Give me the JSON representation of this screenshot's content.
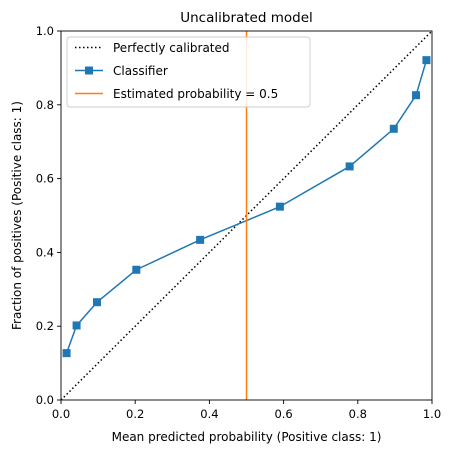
{
  "chart_data": {
    "type": "line",
    "title": "Uncalibrated model",
    "xlabel": "Mean predicted probability (Positive class: 1)",
    "ylabel": "Fraction of positives (Positive class: 1)",
    "xlim": [
      0,
      1
    ],
    "ylim": [
      0,
      1
    ],
    "x_ticks": [
      "0.0",
      "0.2",
      "0.4",
      "0.6",
      "0.8",
      "1.0"
    ],
    "y_ticks": [
      "0.0",
      "0.2",
      "0.4",
      "0.6",
      "0.8",
      "1.0"
    ],
    "grid": false,
    "legend_position": "top-left",
    "series": [
      {
        "name": "Perfectly calibrated",
        "style": "dotted",
        "color": "#000000",
        "x": [
          0,
          1
        ],
        "y": [
          0,
          1
        ]
      },
      {
        "name": "Classifier",
        "style": "solid",
        "marker": "square",
        "color": "#1f77b4",
        "x": [
          0.015,
          0.042,
          0.097,
          0.203,
          0.375,
          0.59,
          0.778,
          0.897,
          0.957,
          0.985
        ],
        "y": [
          0.127,
          0.202,
          0.265,
          0.353,
          0.434,
          0.524,
          0.633,
          0.735,
          0.826,
          0.921
        ]
      },
      {
        "name": "Estimated probability = 0.5",
        "style": "vertical-line",
        "color": "#ff7f0e",
        "x": [
          0.5
        ]
      }
    ]
  }
}
